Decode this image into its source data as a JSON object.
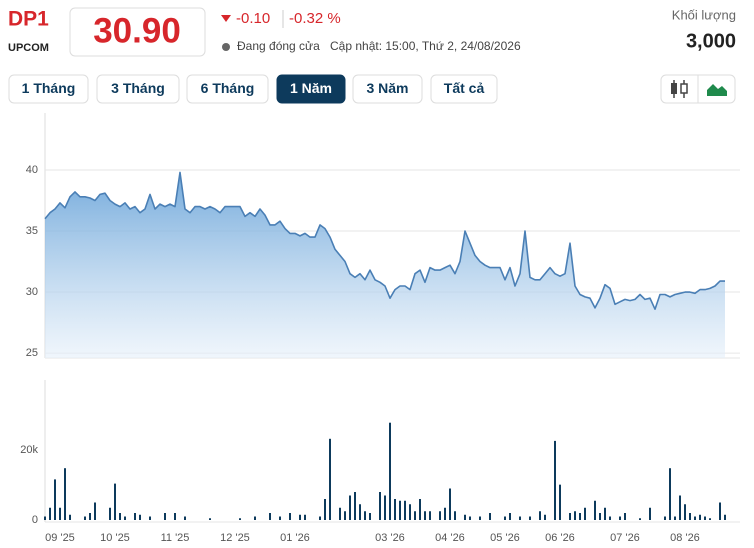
{
  "header": {
    "ticker": "DP1",
    "exchange": "UPCOM",
    "price": "30.90",
    "change": "-0.10",
    "change_pct": "-0.32 %",
    "status": "Đang đóng cửa",
    "updated": "Cập nhật: 15:00, Thứ 2, 24/08/2026",
    "volume_label": "Khối lượng",
    "volume": "3,000"
  },
  "ranges": {
    "items": [
      "1 Tháng",
      "3 Tháng",
      "6 Tháng",
      "1 Năm",
      "3 Năm",
      "Tất cả"
    ],
    "active": 3
  },
  "chart_data": [
    {
      "type": "area",
      "color": "#4a7fb5",
      "ylim": [
        24.6,
        44.5
      ],
      "yticks": [
        25,
        30,
        35,
        40
      ],
      "grid": true,
      "values": [
        36.0,
        36.5,
        36.8,
        37.3,
        36.9,
        37.8,
        38.2,
        37.8,
        37.8,
        37.7,
        37.5,
        38.0,
        38.1,
        37.5,
        37.2,
        37.0,
        37.3,
        36.8,
        37.0,
        36.5,
        36.8,
        38.0,
        36.8,
        37.2,
        37.0,
        37.2,
        37.0,
        39.8,
        36.8,
        36.5,
        37.0,
        37.0,
        36.8,
        37.0,
        36.8,
        36.5,
        37.0,
        37.0,
        37.0,
        37.0,
        36.2,
        36.5,
        36.2,
        36.8,
        36.3,
        35.5,
        35.5,
        35.8,
        35.2,
        34.8,
        34.8,
        34.6,
        34.8,
        34.5,
        34.5,
        35.5,
        35.2,
        34.5,
        33.5,
        33.0,
        32.5,
        31.5,
        31.2,
        31.5,
        31.0,
        31.8,
        31.0,
        30.8,
        30.5,
        29.5,
        30.2,
        30.5,
        30.5,
        30.2,
        31.5,
        31.8,
        30.8,
        32.0,
        31.8,
        31.8,
        32.0,
        32.2,
        31.5,
        32.5,
        35.0,
        34.0,
        33.0,
        32.5,
        32.2,
        32.0,
        32.0,
        32.0,
        31.0,
        32.0,
        30.5,
        31.5,
        35.0,
        31.2,
        31.0,
        31.0,
        31.5,
        32.0,
        31.5,
        31.3,
        31.5,
        34.0,
        30.5,
        29.8,
        29.6,
        29.5,
        28.7,
        29.5,
        30.6,
        30.3,
        29.0,
        29.2,
        29.4,
        29.3,
        29.4,
        29.8,
        29.4,
        29.5,
        28.6,
        29.8,
        29.8,
        29.6,
        29.8,
        29.9,
        30.0,
        30.0,
        29.9,
        30.2,
        30.2,
        30.3,
        30.5,
        30.9,
        30.9
      ]
    },
    {
      "type": "bar",
      "color": "#0d3a5c",
      "ylim": [
        0,
        40000
      ],
      "yticks": [
        0,
        {
          "value": 20000,
          "label": "20k"
        }
      ],
      "grid": false,
      "categories": [
        null,
        null,
        null,
        "09 '25",
        null,
        null,
        null,
        null,
        null,
        null,
        null,
        null,
        null,
        null,
        "10 '25",
        null,
        null,
        null,
        null,
        null,
        null,
        null,
        null,
        null,
        null,
        null,
        "11 '25",
        null,
        null,
        null,
        null,
        null,
        null,
        null,
        null,
        null,
        null,
        null,
        "12 '25",
        null,
        null,
        null,
        null,
        null,
        null,
        null,
        null,
        null,
        null,
        null,
        "01 '26",
        null,
        null,
        null,
        null,
        null,
        null,
        null,
        null,
        null,
        null,
        null,
        null,
        null,
        null,
        null,
        null,
        null,
        null,
        "03 '26",
        null,
        null,
        null,
        null,
        null,
        null,
        null,
        null,
        null,
        null,
        null,
        "04 '26",
        null,
        null,
        null,
        null,
        null,
        null,
        null,
        null,
        null,
        null,
        "05 '26",
        null,
        null,
        null,
        null,
        null,
        null,
        null,
        null,
        null,
        null,
        "06 '26",
        null,
        null,
        null,
        null,
        null,
        null,
        null,
        null,
        null,
        null,
        null,
        null,
        "07 '26",
        null,
        null,
        null,
        null,
        null,
        null,
        null,
        null,
        null,
        null,
        null,
        "08 '26",
        null,
        null,
        null,
        null,
        null,
        null,
        null,
        null
      ],
      "values": [
        1000,
        3500,
        11600,
        3500,
        14800,
        1500,
        0,
        0,
        1000,
        2000,
        5000,
        0,
        0,
        3500,
        10400,
        2000,
        1000,
        0,
        2000,
        1500,
        0,
        1000,
        0,
        0,
        2000,
        0,
        2000,
        0,
        1000,
        0,
        0,
        0,
        0,
        500,
        0,
        0,
        0,
        0,
        0,
        500,
        0,
        0,
        1000,
        0,
        0,
        2000,
        0,
        1000,
        0,
        2000,
        0,
        1500,
        1500,
        0,
        0,
        1000,
        6000,
        23200,
        0,
        3500,
        2500,
        7000,
        8000,
        4500,
        2500,
        2000,
        0,
        8000,
        7000,
        27800,
        6000,
        5500,
        5500,
        4500,
        2500,
        6000,
        2500,
        2500,
        0,
        2500,
        3500,
        9000,
        2500,
        0,
        1500,
        1000,
        0,
        1000,
        0,
        2000,
        0,
        0,
        1000,
        2000,
        0,
        1000,
        0,
        1000,
        0,
        2500,
        1500,
        0,
        22600,
        10100,
        0,
        2000,
        2500,
        2000,
        3500,
        0,
        5500,
        2000,
        3500,
        1000,
        0,
        1000,
        2000,
        0,
        0,
        500,
        0,
        3500,
        0,
        0,
        1000,
        14800,
        1000,
        7000,
        4500,
        2000,
        1000,
        1500,
        1000,
        500,
        0,
        5000,
        1500
      ]
    }
  ]
}
